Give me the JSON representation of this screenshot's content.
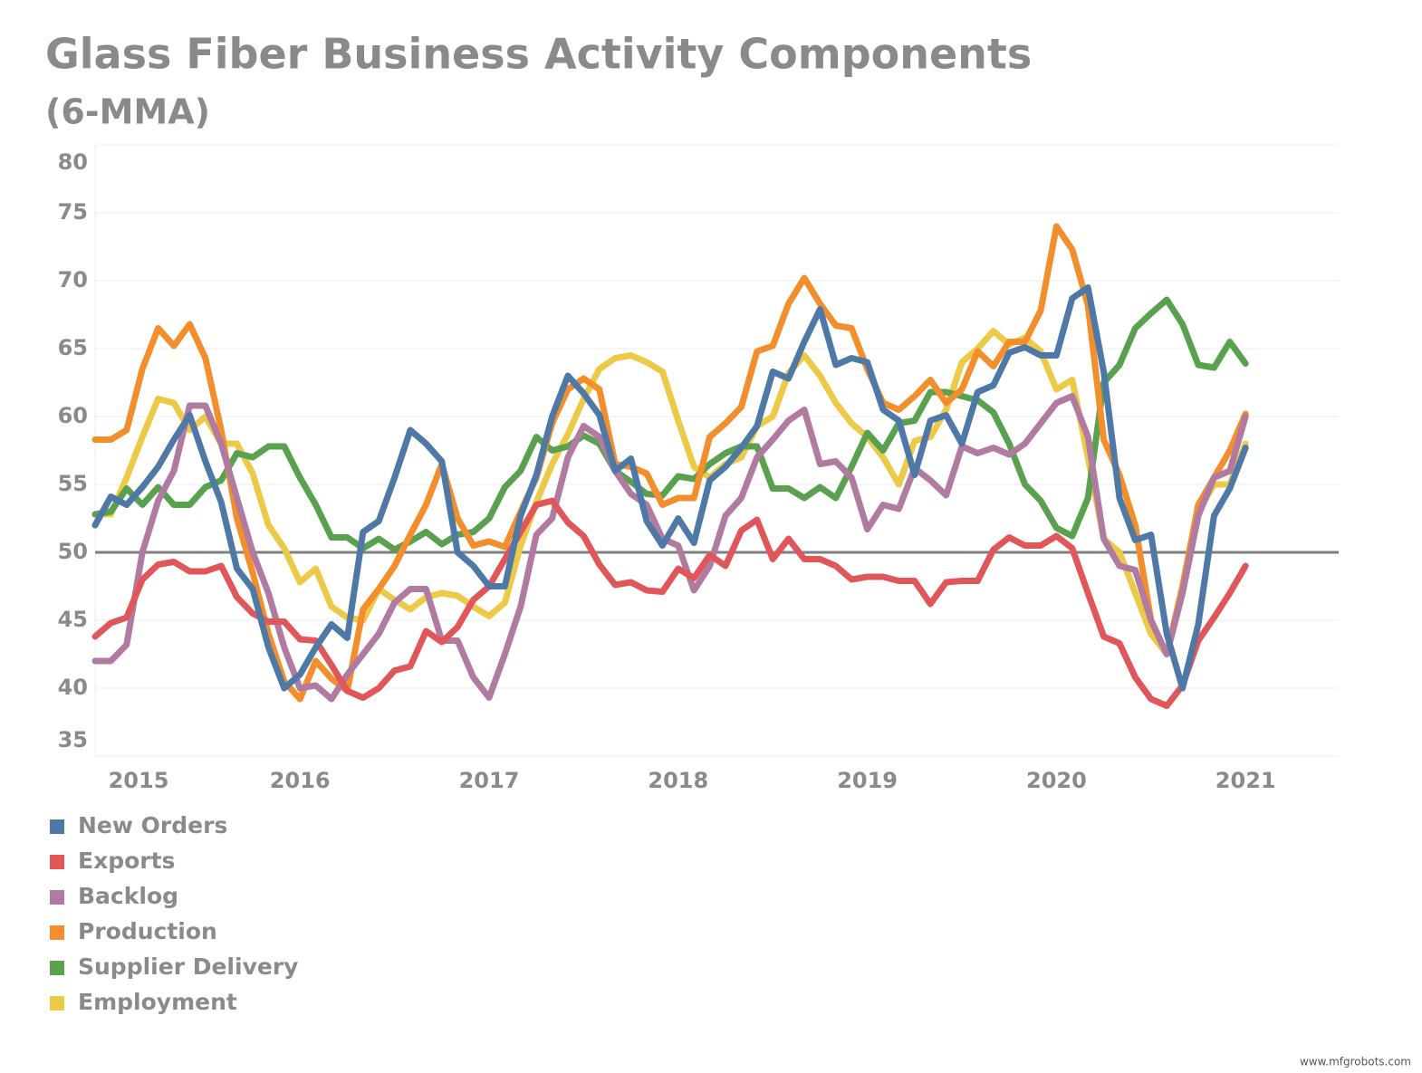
{
  "chart_data": {
    "type": "line",
    "title": "Glass Fiber Business Activity Components",
    "subtitle": "(6-MMA)",
    "watermark": "www.mfgrobots.com",
    "categories": [
      null,
      "2015",
      null,
      null,
      null,
      null,
      null,
      null,
      null,
      null,
      null,
      null,
      null,
      "2016",
      null,
      null,
      null,
      null,
      null,
      null,
      null,
      null,
      null,
      null,
      null,
      "2017",
      null,
      null,
      null,
      null,
      null,
      null,
      null,
      null,
      null,
      null,
      null,
      "2018",
      null,
      null,
      null,
      null,
      null,
      null,
      null,
      null,
      null,
      null,
      null,
      "2019",
      null,
      null,
      null,
      null,
      null,
      null,
      null,
      null,
      null,
      null,
      null,
      "2020",
      null,
      null,
      null,
      null,
      null,
      null,
      null,
      null,
      null,
      null,
      null,
      "2021"
    ],
    "ylim": [
      35,
      80
    ],
    "yticks": [
      35,
      40,
      45,
      50,
      55,
      60,
      65,
      70,
      75,
      80
    ],
    "grid": true,
    "reference_line": 50,
    "legend": "bottom-left",
    "series": [
      {
        "name": "New Orders",
        "color": "#4e79a7",
        "values": [
          52,
          54.1,
          53.5,
          54.8,
          56.3,
          58.3,
          60.1,
          56.7,
          53.7,
          48.8,
          47.3,
          43,
          40,
          41,
          43,
          44.7,
          43.7,
          51.5,
          52.3,
          55.5,
          59,
          58,
          56.7,
          50,
          49,
          47.5,
          47.5,
          52.7,
          55.7,
          60,
          63,
          61.7,
          60.1,
          56,
          56.9,
          52.3,
          50.5,
          52.5,
          50.7,
          55.3,
          56.3,
          57.7,
          59.3,
          63.3,
          62.8,
          65.5,
          67.9,
          63.8,
          64.3,
          64,
          60.5,
          59.7,
          55.7,
          59.7,
          60.1,
          58,
          61.8,
          62.3,
          64.7,
          65.1,
          64.5,
          64.5,
          68.7,
          69.5,
          63.3,
          54,
          50.9,
          51.3,
          44,
          40,
          44.7,
          52.7,
          54.7,
          57.7
        ]
      },
      {
        "name": "Exports",
        "color": "#e15759",
        "values": [
          43.8,
          44.8,
          45.2,
          48,
          49.1,
          49.3,
          48.6,
          48.6,
          49,
          46.7,
          45.5,
          44.9,
          44.9,
          43.6,
          43.5,
          41.7,
          39.8,
          39.3,
          40,
          41.3,
          41.6,
          44.2,
          43.4,
          44.5,
          46.5,
          47.5,
          49.5,
          51.5,
          53.5,
          53.8,
          52.2,
          51.2,
          49.1,
          47.6,
          47.8,
          47.2,
          47.1,
          48.8,
          48.1,
          49.8,
          49,
          51.6,
          52.4,
          49.5,
          51,
          49.5,
          49.5,
          49,
          48,
          48.2,
          48.2,
          47.9,
          47.9,
          46.2,
          47.8,
          47.9,
          47.9,
          50.2,
          51.1,
          50.5,
          50.5,
          51.2,
          50.3,
          47,
          43.8,
          43.3,
          40.8,
          39.2,
          38.7,
          40.2,
          43.5,
          45.2,
          47,
          49
        ]
      },
      {
        "name": "Backlog",
        "color": "#b07aa1",
        "values": [
          42,
          42,
          43.2,
          50,
          53.8,
          56,
          60.8,
          60.8,
          58,
          54,
          50,
          47,
          43,
          40,
          40.2,
          39.2,
          41,
          42.5,
          44,
          46.3,
          47.3,
          47.3,
          43.5,
          43.5,
          40.8,
          39.3,
          42.5,
          46,
          51.3,
          52.5,
          57,
          59.3,
          58.5,
          56,
          54.3,
          53.5,
          51,
          50.5,
          47.2,
          49,
          52.7,
          54,
          57,
          58.3,
          59.7,
          60.5,
          56.5,
          56.7,
          55.5,
          51.7,
          53.5,
          53.2,
          56.2,
          55.3,
          54.2,
          57.8,
          57.3,
          57.7,
          57.2,
          58,
          59.5,
          61,
          61.5,
          58.5,
          51,
          49,
          48.7,
          45,
          42.5,
          47,
          52.7,
          55.5,
          56,
          60
        ]
      },
      {
        "name": "Production",
        "color": "#f28e2b",
        "values": [
          58.3,
          58.3,
          59,
          63.5,
          66.5,
          65.2,
          66.8,
          64.3,
          59,
          52.5,
          48.5,
          44,
          40.5,
          39.2,
          42,
          40.7,
          39.8,
          45.8,
          47.3,
          49,
          51.3,
          53.5,
          56.5,
          52.5,
          50.5,
          50.8,
          50.4,
          53,
          55.5,
          59.5,
          62,
          62.8,
          62,
          56.5,
          56.3,
          55.8,
          53.5,
          54,
          54,
          58.5,
          59.5,
          60.7,
          64.8,
          65.2,
          68.3,
          70.2,
          68.3,
          66.7,
          66.5,
          63.5,
          61,
          60.5,
          61.5,
          62.7,
          61,
          62,
          64.8,
          63.7,
          65.5,
          65.5,
          67.8,
          74,
          72.3,
          68.2,
          58.3,
          55.7,
          52,
          45,
          42.5,
          47.5,
          53.5,
          55.5,
          57.5,
          60.2
        ]
      },
      {
        "name": "Supplier Delivery",
        "color": "#59a14f",
        "values": [
          52.8,
          53,
          54.7,
          53.5,
          54.8,
          53.5,
          53.5,
          54.8,
          55.3,
          57.3,
          57,
          57.8,
          57.8,
          55.5,
          53.5,
          51.1,
          51.1,
          50.3,
          51,
          50.2,
          50.8,
          51.5,
          50.6,
          51.3,
          51.5,
          52.5,
          54.8,
          56,
          58.5,
          57.5,
          57.8,
          58.6,
          58,
          56,
          55.2,
          54.3,
          54.2,
          55.6,
          55.4,
          56.5,
          57.3,
          57.8,
          57.8,
          54.7,
          54.7,
          54,
          54.8,
          54,
          56.3,
          58.8,
          57.5,
          59.5,
          59.7,
          61.8,
          61.8,
          61.5,
          61.2,
          60.3,
          58,
          55,
          53.8,
          51.8,
          51.2,
          54,
          62.5,
          63.8,
          66.5,
          67.6,
          68.6,
          66.8,
          63.8,
          63.6,
          65.5,
          63.9
        ]
      },
      {
        "name": "Employment",
        "color": "#edc948",
        "values": [
          52.8,
          52.8,
          55.5,
          58.5,
          61.3,
          61,
          59,
          60,
          58,
          58,
          55.8,
          52,
          50.3,
          47.8,
          48.8,
          46,
          45.2,
          45,
          47.3,
          46.5,
          45.8,
          46.7,
          47,
          46.8,
          46,
          45.3,
          46.3,
          50.5,
          53.7,
          56.5,
          58.7,
          61.3,
          63.5,
          64.3,
          64.5,
          64,
          63.3,
          59.7,
          56.3,
          55.5,
          56.5,
          57,
          59.3,
          60,
          63.2,
          64.5,
          63,
          61,
          59.5,
          58.5,
          57,
          55,
          58.2,
          58.5,
          60.5,
          64,
          65,
          66.3,
          65.3,
          65.8,
          64.8,
          62,
          62.7,
          57,
          51,
          50,
          47,
          44,
          42.5,
          47,
          53,
          55,
          55,
          58
        ]
      }
    ]
  }
}
